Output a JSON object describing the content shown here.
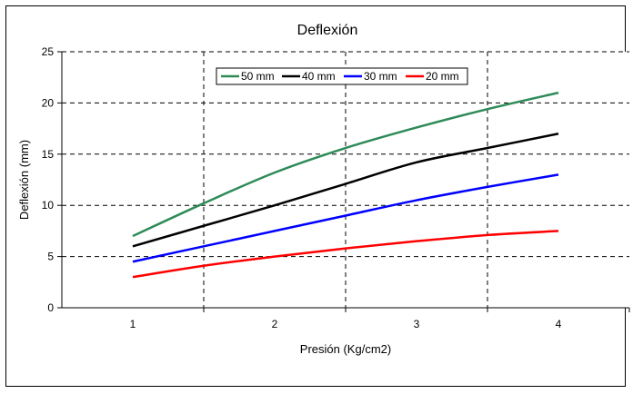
{
  "chart_data": {
    "type": "line",
    "title": "Deflexión",
    "xlabel": "Presión (Kg/cm2)",
    "ylabel": "Deflexión (mm)",
    "x_ticks": [
      "1",
      "2",
      "3",
      "4"
    ],
    "y_ticks": [
      "0",
      "5",
      "10",
      "15",
      "20",
      "25"
    ],
    "xlim": [
      0.5,
      4.5
    ],
    "ylim": [
      0,
      25
    ],
    "grid": "dashed",
    "legend_position": "top-center",
    "series": [
      {
        "name": "50 mm",
        "color": "#2e8b57",
        "x": [
          1,
          1.5,
          2,
          2.5,
          3,
          3.5,
          4
        ],
        "y": [
          7,
          10.2,
          13.2,
          15.6,
          17.6,
          19.4,
          21
        ]
      },
      {
        "name": "40 mm",
        "color": "#000000",
        "x": [
          1,
          1.5,
          2,
          2.5,
          3,
          3.5,
          4
        ],
        "y": [
          6,
          8,
          10,
          12.1,
          14.2,
          15.6,
          17
        ]
      },
      {
        "name": "30 mm",
        "color": "#0000ff",
        "x": [
          1,
          1.5,
          2,
          2.5,
          3,
          3.5,
          4
        ],
        "y": [
          4.5,
          6,
          7.5,
          9,
          10.5,
          11.8,
          13
        ]
      },
      {
        "name": "20 mm",
        "color": "#ff0000",
        "x": [
          1,
          1.5,
          2,
          2.5,
          3,
          3.5,
          4
        ],
        "y": [
          3,
          4.1,
          5,
          5.8,
          6.5,
          7.1,
          7.5
        ]
      }
    ]
  }
}
